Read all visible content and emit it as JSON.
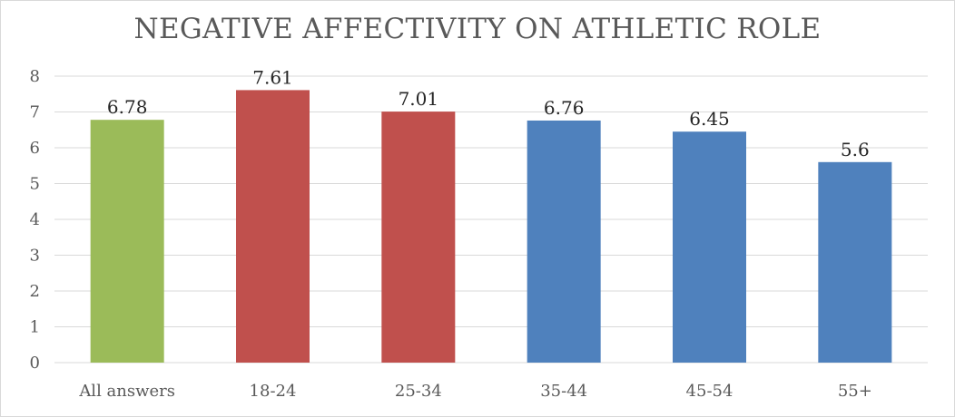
{
  "chart_data": {
    "type": "bar",
    "title": "NEGATIVE AFFECTIVITY ON ATHLETIC ROLE",
    "xlabel": "",
    "ylabel": "",
    "categories": [
      "All answers",
      "18-24",
      "25-34",
      "35-44",
      "45-54",
      "55+"
    ],
    "values": [
      6.78,
      7.61,
      7.01,
      6.76,
      6.45,
      5.6
    ],
    "data_labels": [
      "6.78",
      "7.61",
      "7.01",
      "6.76",
      "6.45",
      "5.6"
    ],
    "bar_colors": [
      "#9bbb59",
      "#c0504d",
      "#c0504d",
      "#4f81bd",
      "#4f81bd",
      "#4f81bd"
    ],
    "ylim": [
      0,
      8
    ],
    "yticks": [
      "0",
      "1",
      "2",
      "3",
      "4",
      "5",
      "6",
      "7",
      "8"
    ],
    "grid": true,
    "gridline_color": "#d9d9d9",
    "legend": "none"
  }
}
